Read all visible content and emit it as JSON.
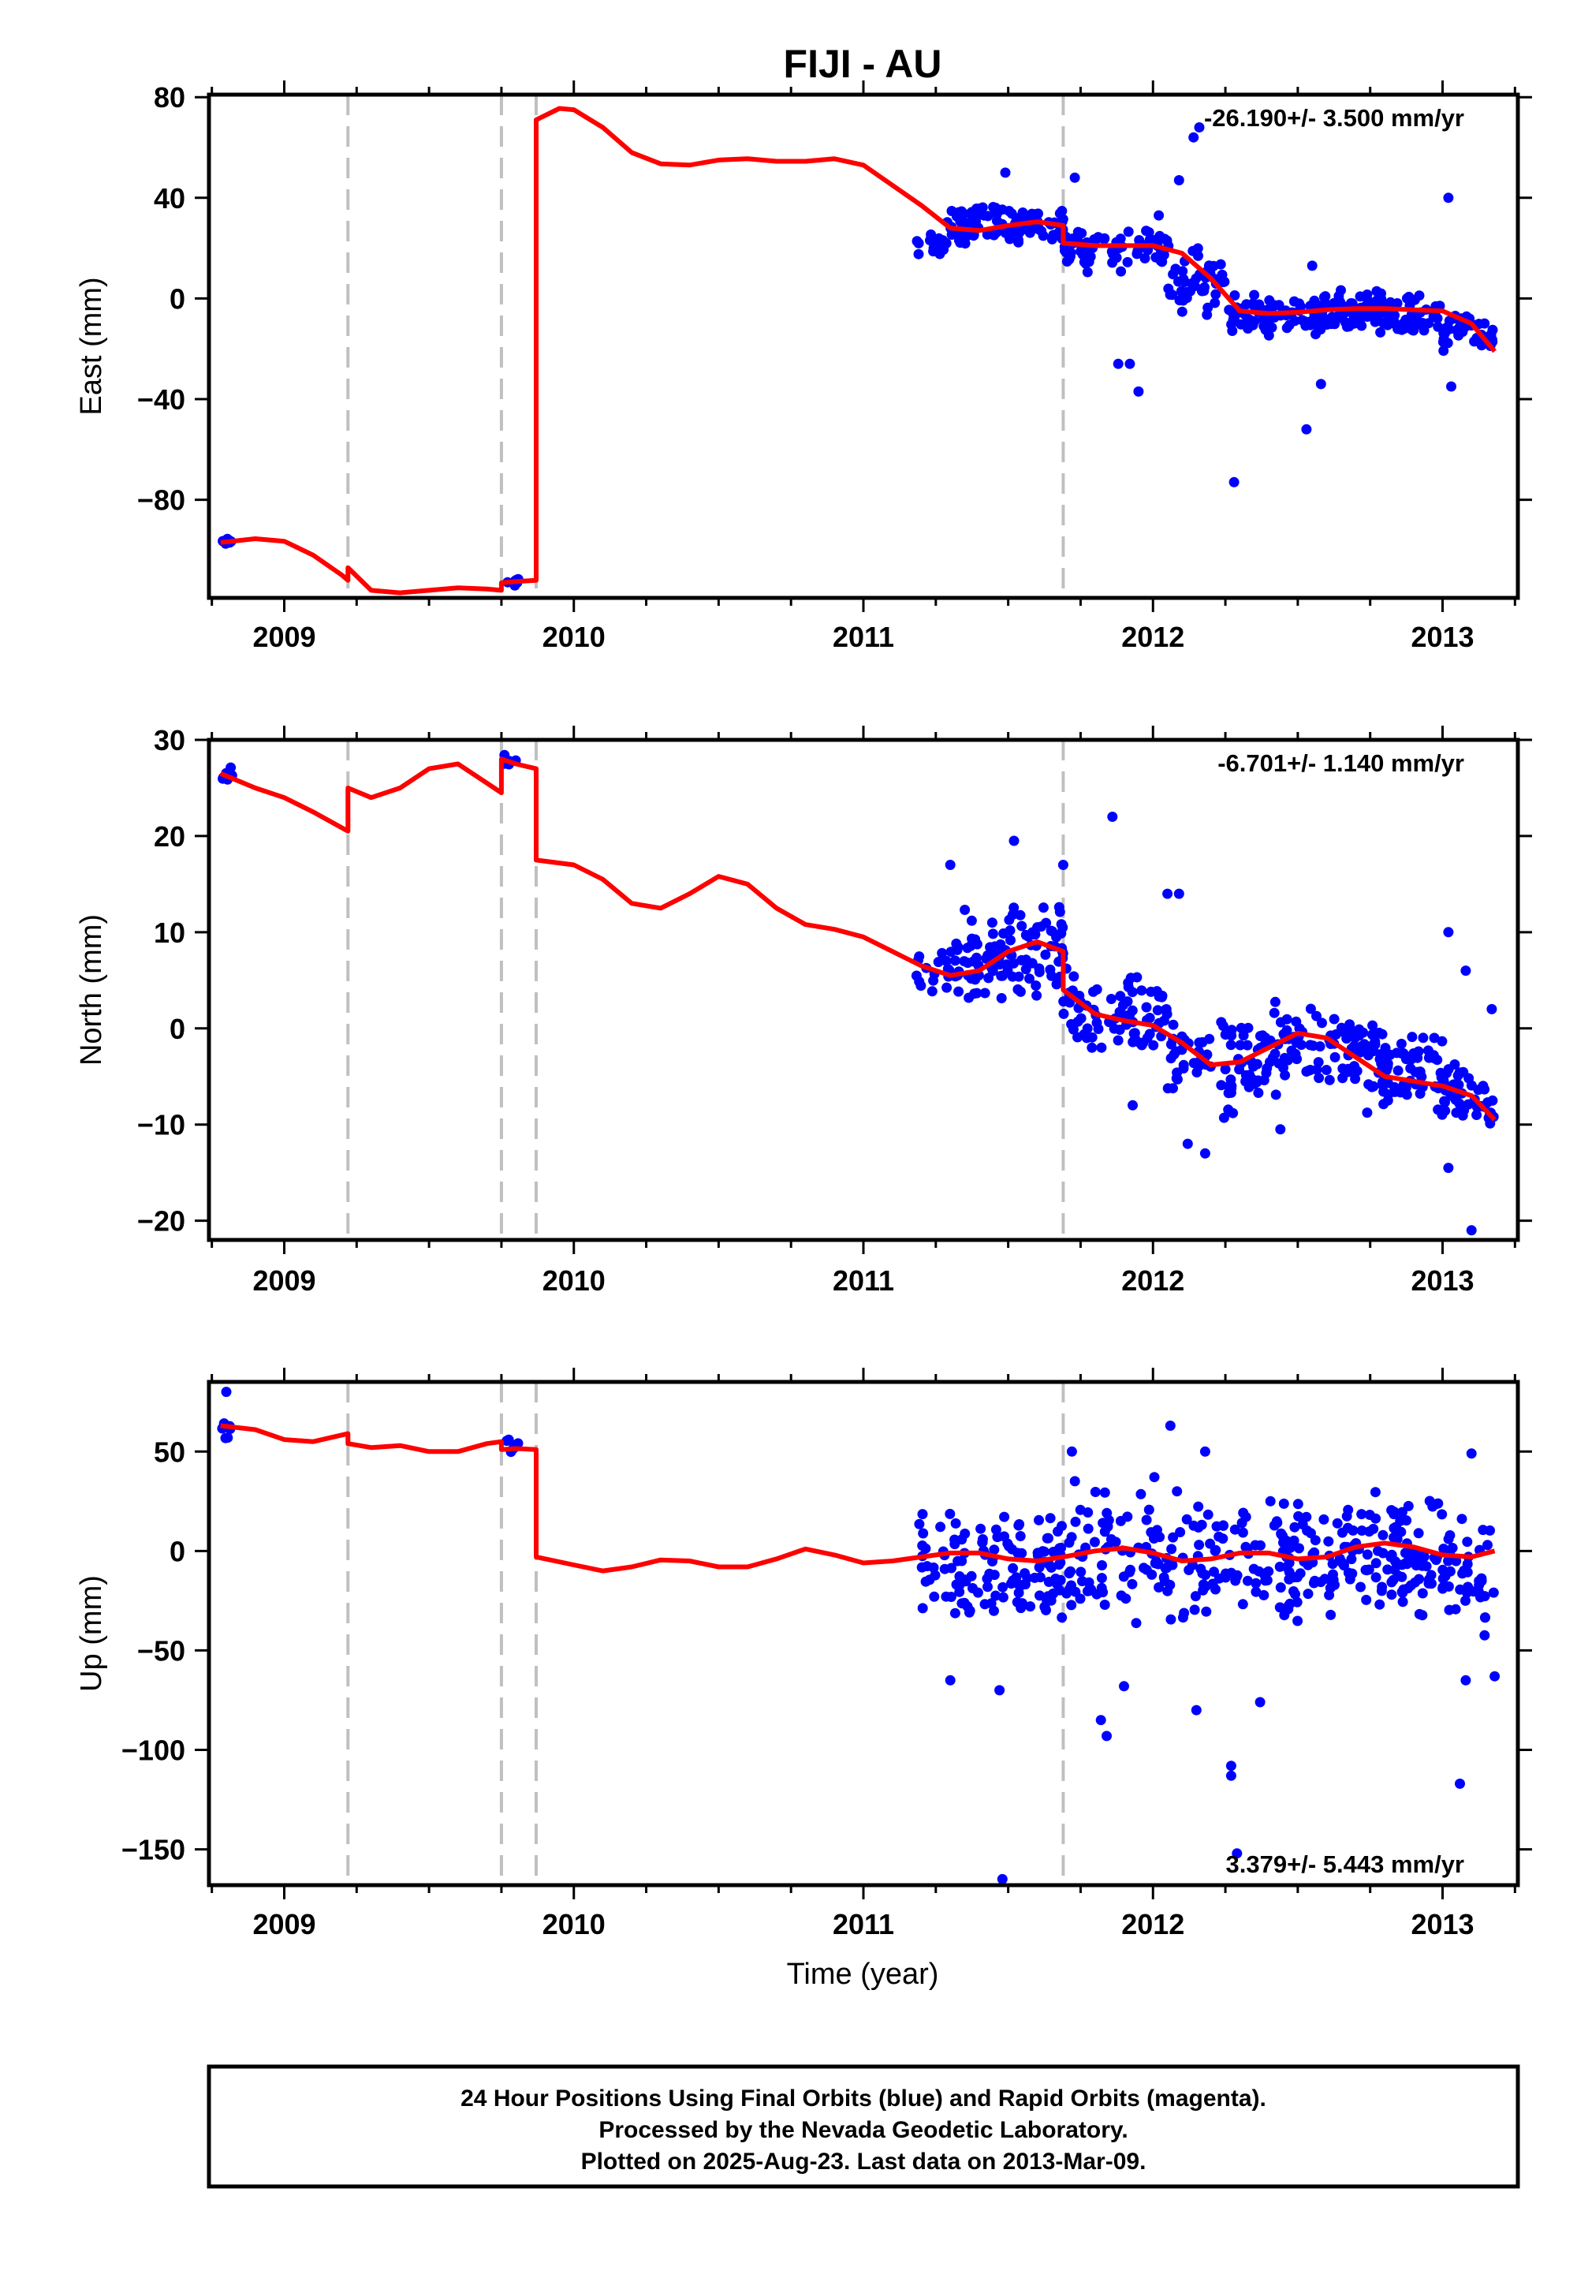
{
  "figure": {
    "title": "FIJI - AU",
    "x_axis_label": "Time (year)",
    "footer_lines": [
      "24 Hour Positions Using Final Orbits (blue) and Rapid Orbits (magenta).",
      "Processed by the Nevada Geodetic Laboratory.",
      "Plotted on 2025-Aug-23. Last data on 2013-Mar-09."
    ]
  },
  "colors": {
    "data_points": "#0000ff",
    "model_line": "#ff0000",
    "event_lines": "#c0c0c0",
    "frame": "#000000"
  },
  "chart_data": [
    {
      "type": "scatter",
      "panel": "east",
      "ylabel": "East (mm)",
      "rate_label": "-26.190+/- 3.500 mm/yr",
      "rate_position": "top-right",
      "xlim": [
        2008.74,
        2013.26
      ],
      "ylim": [
        -119,
        81
      ],
      "x_ticks": [
        2009,
        2010,
        2011,
        2012,
        2013
      ],
      "y_ticks": [
        -80,
        -40,
        0,
        40,
        80
      ],
      "y_tick_labels": [
        "−80",
        "−40",
        "0",
        "40",
        "80"
      ],
      "event_lines": [
        2009.22,
        2009.75,
        2009.87,
        2011.69
      ],
      "model_segments": [
        [
          [
            2008.78,
            -97
          ],
          [
            2008.9,
            -95.5
          ],
          [
            2009.0,
            -96.5
          ],
          [
            2009.1,
            -102
          ],
          [
            2009.2,
            -110
          ],
          [
            2009.22,
            -112
          ]
        ],
        [
          [
            2009.22,
            -107
          ],
          [
            2009.3,
            -116
          ],
          [
            2009.4,
            -117
          ],
          [
            2009.5,
            -116
          ],
          [
            2009.6,
            -115
          ],
          [
            2009.7,
            -115.5
          ],
          [
            2009.75,
            -116
          ]
        ],
        [
          [
            2009.75,
            -113
          ],
          [
            2009.8,
            -112.5
          ],
          [
            2009.87,
            -112
          ]
        ],
        [
          [
            2009.87,
            71
          ],
          [
            2009.95,
            75.5
          ],
          [
            2010.0,
            75
          ],
          [
            2010.1,
            68
          ],
          [
            2010.2,
            58
          ],
          [
            2010.3,
            53.5
          ],
          [
            2010.4,
            53
          ],
          [
            2010.5,
            55
          ],
          [
            2010.6,
            55.5
          ],
          [
            2010.7,
            54.5
          ],
          [
            2010.8,
            54.5
          ],
          [
            2010.9,
            55.5
          ],
          [
            2011.0,
            53
          ],
          [
            2011.1,
            45
          ],
          [
            2011.2,
            37
          ],
          [
            2011.3,
            28
          ],
          [
            2011.4,
            27
          ],
          [
            2011.5,
            29
          ],
          [
            2011.6,
            30.5
          ],
          [
            2011.69,
            29
          ]
        ],
        [
          [
            2011.69,
            22
          ],
          [
            2011.8,
            21
          ],
          [
            2011.9,
            21
          ],
          [
            2012.0,
            21
          ],
          [
            2012.1,
            18
          ],
          [
            2012.2,
            8
          ],
          [
            2012.3,
            -5
          ],
          [
            2012.4,
            -6
          ],
          [
            2012.5,
            -5.5
          ],
          [
            2012.6,
            -4.5
          ],
          [
            2012.7,
            -4
          ],
          [
            2012.8,
            -4
          ],
          [
            2012.9,
            -4.5
          ],
          [
            2013.0,
            -5
          ],
          [
            2013.1,
            -10
          ],
          [
            2013.18,
            -21
          ]
        ]
      ],
      "clusters": [
        {
          "x_range": [
            2008.78,
            2008.82
          ],
          "y_min": -99,
          "y_max": -94,
          "count": 6,
          "seed": 11
        },
        {
          "x_range": [
            2009.76,
            2009.81
          ],
          "y_min": -116,
          "y_max": -111,
          "count": 7,
          "seed": 12
        },
        {
          "x_range": [
            2011.18,
            2011.3
          ],
          "y_min": 14,
          "y_max": 30,
          "count": 16,
          "seed": 13
        },
        {
          "x_range": [
            2011.3,
            2011.69
          ],
          "y_min": 18,
          "y_max": 40,
          "count": 110,
          "seed": 14
        },
        {
          "x_range": [
            2011.69,
            2012.05
          ],
          "y_min": 8,
          "y_max": 30,
          "count": 80,
          "seed": 15
        },
        {
          "x_range": [
            2012.05,
            2012.25
          ],
          "y_min": -18,
          "y_max": 22,
          "count": 45,
          "seed": 16
        },
        {
          "x_range": [
            2012.25,
            2013.0
          ],
          "y_min": -18,
          "y_max": 4,
          "count": 190,
          "seed": 17
        },
        {
          "x_range": [
            2013.0,
            2013.18
          ],
          "y_min": -22,
          "y_max": -6,
          "count": 45,
          "seed": 18
        }
      ],
      "outliers": [
        [
          2011.49,
          50
        ],
        [
          2011.73,
          48
        ],
        [
          2012.09,
          47
        ],
        [
          2012.14,
          64
        ],
        [
          2012.16,
          68
        ],
        [
          2011.88,
          -26
        ],
        [
          2011.92,
          -26
        ],
        [
          2011.95,
          -37
        ],
        [
          2012.28,
          -73
        ],
        [
          2012.53,
          -52
        ],
        [
          2012.58,
          -34
        ],
        [
          2013.02,
          40
        ],
        [
          2013.03,
          -35
        ],
        [
          2012.55,
          13
        ],
        [
          2012.02,
          33
        ]
      ]
    },
    {
      "type": "scatter",
      "panel": "north",
      "ylabel": "North (mm)",
      "rate_label": "-6.701+/- 1.140 mm/yr",
      "rate_position": "top-right",
      "xlim": [
        2008.74,
        2013.26
      ],
      "ylim": [
        -22,
        30
      ],
      "x_ticks": [
        2009,
        2010,
        2011,
        2012,
        2013
      ],
      "y_ticks": [
        -20,
        -10,
        0,
        10,
        20,
        30
      ],
      "y_tick_labels": [
        "−20",
        "−10",
        "0",
        "10",
        "20",
        "30"
      ],
      "event_lines": [
        2009.22,
        2009.75,
        2009.87,
        2011.69
      ],
      "model_segments": [
        [
          [
            2008.78,
            26.5
          ],
          [
            2008.9,
            25
          ],
          [
            2009.0,
            24
          ],
          [
            2009.1,
            22.5
          ],
          [
            2009.22,
            20.5
          ]
        ],
        [
          [
            2009.22,
            25
          ],
          [
            2009.3,
            24
          ],
          [
            2009.4,
            25
          ],
          [
            2009.5,
            27
          ],
          [
            2009.6,
            27.5
          ],
          [
            2009.7,
            25.5
          ],
          [
            2009.75,
            24.5
          ]
        ],
        [
          [
            2009.75,
            28
          ],
          [
            2009.8,
            27.5
          ],
          [
            2009.87,
            27
          ]
        ],
        [
          [
            2009.87,
            17.5
          ],
          [
            2010.0,
            17
          ],
          [
            2010.1,
            15.5
          ],
          [
            2010.2,
            13
          ],
          [
            2010.3,
            12.5
          ],
          [
            2010.4,
            14
          ],
          [
            2010.5,
            15.8
          ],
          [
            2010.6,
            15
          ],
          [
            2010.7,
            12.5
          ],
          [
            2010.8,
            10.8
          ],
          [
            2010.9,
            10.3
          ],
          [
            2011.0,
            9.5
          ],
          [
            2011.1,
            8
          ],
          [
            2011.2,
            6.5
          ],
          [
            2011.3,
            5.5
          ],
          [
            2011.4,
            6
          ],
          [
            2011.5,
            8
          ],
          [
            2011.6,
            9
          ],
          [
            2011.69,
            8
          ]
        ],
        [
          [
            2011.69,
            4
          ],
          [
            2011.8,
            1.5
          ],
          [
            2011.9,
            0.8
          ],
          [
            2012.0,
            0.3
          ],
          [
            2012.1,
            -1.5
          ],
          [
            2012.2,
            -3.8
          ],
          [
            2012.3,
            -3.5
          ],
          [
            2012.4,
            -2
          ],
          [
            2012.5,
            -0.5
          ],
          [
            2012.6,
            -1
          ],
          [
            2012.7,
            -3
          ],
          [
            2012.8,
            -5
          ],
          [
            2012.9,
            -5.5
          ],
          [
            2013.0,
            -6
          ],
          [
            2013.1,
            -7
          ],
          [
            2013.18,
            -9.5
          ]
        ]
      ],
      "clusters": [
        {
          "x_range": [
            2008.78,
            2008.82
          ],
          "y_min": 25,
          "y_max": 28,
          "count": 6,
          "seed": 21
        },
        {
          "x_range": [
            2009.76,
            2009.81
          ],
          "y_min": 27,
          "y_max": 29,
          "count": 6,
          "seed": 22
        },
        {
          "x_range": [
            2011.18,
            2011.3
          ],
          "y_min": 1,
          "y_max": 9,
          "count": 16,
          "seed": 23
        },
        {
          "x_range": [
            2011.3,
            2011.69
          ],
          "y_min": 2,
          "y_max": 15,
          "count": 110,
          "seed": 24
        },
        {
          "x_range": [
            2011.69,
            2012.05
          ],
          "y_min": -4,
          "y_max": 8,
          "count": 80,
          "seed": 25
        },
        {
          "x_range": [
            2012.05,
            2012.3
          ],
          "y_min": -12,
          "y_max": 3,
          "count": 50,
          "seed": 26
        },
        {
          "x_range": [
            2012.3,
            2013.0
          ],
          "y_min": -10,
          "y_max": 3,
          "count": 190,
          "seed": 27
        },
        {
          "x_range": [
            2013.0,
            2013.18
          ],
          "y_min": -11,
          "y_max": -2,
          "count": 45,
          "seed": 28
        }
      ],
      "outliers": [
        [
          2011.52,
          19.5
        ],
        [
          2011.86,
          22
        ],
        [
          2011.69,
          17
        ],
        [
          2012.05,
          14
        ],
        [
          2012.09,
          14
        ],
        [
          2011.3,
          17
        ],
        [
          2012.12,
          -12
        ],
        [
          2012.18,
          -13
        ],
        [
          2013.02,
          10
        ],
        [
          2013.02,
          -14.5
        ],
        [
          2013.08,
          6
        ],
        [
          2013.1,
          -21
        ],
        [
          2013.17,
          2
        ],
        [
          2011.93,
          -8
        ],
        [
          2012.44,
          -10.5
        ]
      ]
    },
    {
      "type": "scatter",
      "panel": "up",
      "ylabel": "Up (mm)",
      "rate_label": "3.379+/- 5.443 mm/yr",
      "rate_position": "bottom-right",
      "xlim": [
        2008.74,
        2013.26
      ],
      "ylim": [
        -168,
        85
      ],
      "x_ticks": [
        2009,
        2010,
        2011,
        2012,
        2013
      ],
      "y_ticks": [
        -150,
        -100,
        -50,
        0,
        50
      ],
      "y_tick_labels": [
        "−150",
        "−100",
        "−50",
        "0",
        "50"
      ],
      "event_lines": [
        2009.22,
        2009.75,
        2009.87,
        2011.69
      ],
      "model_segments": [
        [
          [
            2008.78,
            63
          ],
          [
            2008.9,
            61
          ],
          [
            2009.0,
            56
          ],
          [
            2009.1,
            55
          ],
          [
            2009.22,
            59
          ]
        ],
        [
          [
            2009.22,
            54
          ],
          [
            2009.3,
            52
          ],
          [
            2009.4,
            53
          ],
          [
            2009.5,
            50
          ],
          [
            2009.6,
            50
          ],
          [
            2009.7,
            54
          ],
          [
            2009.75,
            55
          ]
        ],
        [
          [
            2009.75,
            51
          ],
          [
            2009.8,
            51.5
          ],
          [
            2009.87,
            51
          ]
        ],
        [
          [
            2009.87,
            -3
          ],
          [
            2010.0,
            -7
          ],
          [
            2010.1,
            -10
          ],
          [
            2010.2,
            -8
          ],
          [
            2010.3,
            -4.5
          ],
          [
            2010.4,
            -5
          ],
          [
            2010.5,
            -8
          ],
          [
            2010.6,
            -8
          ],
          [
            2010.7,
            -4
          ],
          [
            2010.8,
            1
          ],
          [
            2010.9,
            -2
          ],
          [
            2011.0,
            -6
          ],
          [
            2011.1,
            -5
          ],
          [
            2011.2,
            -3
          ],
          [
            2011.3,
            -1
          ],
          [
            2011.4,
            -1
          ],
          [
            2011.5,
            -4
          ],
          [
            2011.6,
            -5
          ],
          [
            2011.69,
            -3
          ]
        ],
        [
          [
            2011.69,
            -3
          ],
          [
            2011.8,
            0
          ],
          [
            2011.9,
            1.5
          ],
          [
            2012.0,
            -1
          ],
          [
            2012.1,
            -5
          ],
          [
            2012.2,
            -4
          ],
          [
            2012.3,
            -1
          ],
          [
            2012.4,
            -1
          ],
          [
            2012.5,
            -4
          ],
          [
            2012.6,
            -3
          ],
          [
            2012.7,
            2
          ],
          [
            2012.8,
            4
          ],
          [
            2012.9,
            2
          ],
          [
            2013.0,
            -2
          ],
          [
            2013.1,
            -3
          ],
          [
            2013.18,
            0
          ]
        ]
      ],
      "clusters": [
        {
          "x_range": [
            2008.78,
            2008.82
          ],
          "y_min": 54,
          "y_max": 66,
          "count": 7,
          "seed": 31
        },
        {
          "x_range": [
            2009.76,
            2009.81
          ],
          "y_min": 50,
          "y_max": 60,
          "count": 6,
          "seed": 32
        },
        {
          "x_range": [
            2011.18,
            2011.3
          ],
          "y_min": -45,
          "y_max": 35,
          "count": 20,
          "seed": 33
        },
        {
          "x_range": [
            2011.3,
            2011.69
          ],
          "y_min": -50,
          "y_max": 35,
          "count": 110,
          "seed": 34
        },
        {
          "x_range": [
            2011.69,
            2012.05
          ],
          "y_min": -55,
          "y_max": 45,
          "count": 80,
          "seed": 35
        },
        {
          "x_range": [
            2012.05,
            2012.3
          ],
          "y_min": -60,
          "y_max": 40,
          "count": 50,
          "seed": 36
        },
        {
          "x_range": [
            2012.3,
            2013.0
          ],
          "y_min": -50,
          "y_max": 40,
          "count": 190,
          "seed": 37
        },
        {
          "x_range": [
            2013.0,
            2013.18
          ],
          "y_min": -55,
          "y_max": 30,
          "count": 45,
          "seed": 38
        }
      ],
      "outliers": [
        [
          2008.8,
          80
        ],
        [
          2011.48,
          -165
        ],
        [
          2012.27,
          -108
        ],
        [
          2012.27,
          -113
        ],
        [
          2012.29,
          -152
        ],
        [
          2013.06,
          -117
        ],
        [
          2011.82,
          -85
        ],
        [
          2011.84,
          -93
        ],
        [
          2012.15,
          -80
        ],
        [
          2012.37,
          -76
        ],
        [
          2012.06,
          63
        ],
        [
          2012.18,
          50
        ],
        [
          2011.72,
          50
        ],
        [
          2013.1,
          49
        ],
        [
          2011.3,
          -65
        ],
        [
          2011.47,
          -70
        ],
        [
          2011.9,
          -68
        ],
        [
          2013.08,
          -65
        ],
        [
          2013.18,
          -63
        ]
      ]
    }
  ]
}
